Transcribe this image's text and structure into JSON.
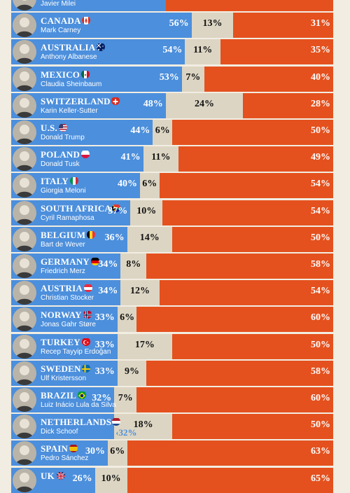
{
  "colors": {
    "approve": "#4c8fdc",
    "neutral": "#dcd5c3",
    "disapprove": "#e4511e",
    "background": "#f2ede2"
  },
  "chart_data": {
    "type": "bar",
    "stacked": true,
    "orientation": "horizontal",
    "series": [
      {
        "key": "approve",
        "values": [
          null,
          56,
          54,
          53,
          48,
          44,
          41,
          40,
          37,
          36,
          34,
          34,
          33,
          33,
          33,
          32,
          null,
          30,
          26
        ]
      },
      {
        "key": "neutral",
        "values": [
          null,
          13,
          11,
          7,
          24,
          6,
          11,
          6,
          10,
          14,
          8,
          12,
          6,
          17,
          9,
          7,
          18,
          6,
          10
        ]
      },
      {
        "key": "disapprove",
        "values": [
          null,
          31,
          35,
          40,
          28,
          50,
          49,
          54,
          54,
          50,
          58,
          54,
          60,
          50,
          58,
          60,
          50,
          63,
          65
        ]
      }
    ],
    "rows": [
      {
        "country": "",
        "leader": "Javier Milei",
        "flag": "argentina-flag-icon",
        "approve": 48,
        "neutral": 0,
        "disapprove": 52,
        "partial": true
      },
      {
        "country": "CANADA",
        "leader": "Mark Carney",
        "flag": "canada-flag-icon",
        "approve": 56,
        "neutral": 13,
        "disapprove": 31,
        "approve_text": "56%",
        "neutral_text": "13%",
        "disapprove_text": "31%"
      },
      {
        "country": "AUSTRALIA",
        "leader": "Anthony Albanese",
        "flag": "australia-flag-icon",
        "approve": 54,
        "neutral": 11,
        "disapprove": 35,
        "approve_text": "54%",
        "neutral_text": "11%",
        "disapprove_text": "35%"
      },
      {
        "country": "MEXICO",
        "leader": "Claudia Sheinbaum",
        "flag": "mexico-flag-icon",
        "approve": 53,
        "neutral": 7,
        "disapprove": 40,
        "approve_text": "53%",
        "neutral_text": "7%",
        "disapprove_text": "40%"
      },
      {
        "country": "SWITZERLAND",
        "leader": "Karin Keller-Sutter",
        "flag": "switzerland-flag-icon",
        "approve": 48,
        "neutral": 24,
        "disapprove": 28,
        "approve_text": "48%",
        "neutral_text": "24%",
        "disapprove_text": "28%"
      },
      {
        "country": "U.S.",
        "leader": "Donald Trump",
        "flag": "usa-flag-icon",
        "approve": 44,
        "neutral": 6,
        "disapprove": 50,
        "approve_text": "44%",
        "neutral_text": "6%",
        "disapprove_text": "50%"
      },
      {
        "country": "POLAND",
        "leader": "Donald Tusk",
        "flag": "poland-flag-icon",
        "approve": 41,
        "neutral": 11,
        "disapprove": 49,
        "approve_text": "41%",
        "neutral_text": "11%",
        "disapprove_text": "49%"
      },
      {
        "country": "ITALY",
        "leader": "Giorgia Meloni",
        "flag": "italy-flag-icon",
        "approve": 40,
        "neutral": 6,
        "disapprove": 54,
        "approve_text": "40%",
        "neutral_text": "6%",
        "disapprove_text": "54%"
      },
      {
        "country": "SOUTH AFRICA",
        "leader": "Cyril Ramaphosa",
        "flag": "south-africa-flag-icon",
        "approve": 37,
        "neutral": 10,
        "disapprove": 54,
        "approve_text": "37%",
        "neutral_text": "10%",
        "disapprove_text": "54%"
      },
      {
        "country": "BELGIUM",
        "leader": "Bart de Wever",
        "flag": "belgium-flag-icon",
        "approve": 36,
        "neutral": 14,
        "disapprove": 50,
        "approve_text": "36%",
        "neutral_text": "14%",
        "disapprove_text": "50%"
      },
      {
        "country": "GERMANY",
        "leader": "Friedrich Merz",
        "flag": "germany-flag-icon",
        "approve": 34,
        "neutral": 8,
        "disapprove": 58,
        "approve_text": "34%",
        "neutral_text": "8%",
        "disapprove_text": "58%"
      },
      {
        "country": "AUSTRIA",
        "leader": "Christian Stocker",
        "flag": "austria-flag-icon",
        "approve": 34,
        "neutral": 12,
        "disapprove": 54,
        "approve_text": "34%",
        "neutral_text": "12%",
        "disapprove_text": "54%"
      },
      {
        "country": "NORWAY",
        "leader": "Jonas Gahr Støre",
        "flag": "norway-flag-icon",
        "approve": 33,
        "neutral": 6,
        "disapprove": 60,
        "approve_text": "33%",
        "neutral_text": "6%",
        "disapprove_text": "60%"
      },
      {
        "country": "TURKEY",
        "leader": "Recep Tayyip Erdoğan",
        "flag": "turkey-flag-icon",
        "approve": 33,
        "neutral": 17,
        "disapprove": 50,
        "approve_text": "33%",
        "neutral_text": "17%",
        "disapprove_text": "50%"
      },
      {
        "country": "SWEDEN",
        "leader": "Ulf Kristersson",
        "flag": "sweden-flag-icon",
        "approve": 33,
        "neutral": 9,
        "disapprove": 58,
        "approve_text": "33%",
        "neutral_text": "9%",
        "disapprove_text": "58%"
      },
      {
        "country": "BRAZIL",
        "leader": "Luiz Inácio Lula da Silva",
        "flag": "brazil-flag-icon",
        "approve": 32,
        "neutral": 7,
        "disapprove": 60,
        "approve_text": "32%",
        "neutral_text": "7%",
        "disapprove_text": "60%"
      },
      {
        "country": "NETHERLANDS",
        "leader": "Dick Schoof",
        "flag": "netherlands-flag-icon",
        "approve": 32,
        "neutral": 18,
        "disapprove": 50,
        "approve_text": "",
        "neutral_text": "18%",
        "disapprove_text": "50%",
        "extra_text": "‹32%"
      },
      {
        "country": "SPAIN",
        "leader": "Pedro Sánchez",
        "flag": "spain-flag-icon",
        "approve": 30,
        "neutral": 6,
        "disapprove": 63,
        "approve_text": "30%",
        "neutral_text": "6%",
        "disapprove_text": "63%"
      },
      {
        "country": "UK",
        "leader": "",
        "flag": "uk-flag-icon",
        "approve": 26,
        "neutral": 10,
        "disapprove": 65,
        "approve_text": "26%",
        "neutral_text": "10%",
        "disapprove_text": "65%"
      }
    ]
  }
}
